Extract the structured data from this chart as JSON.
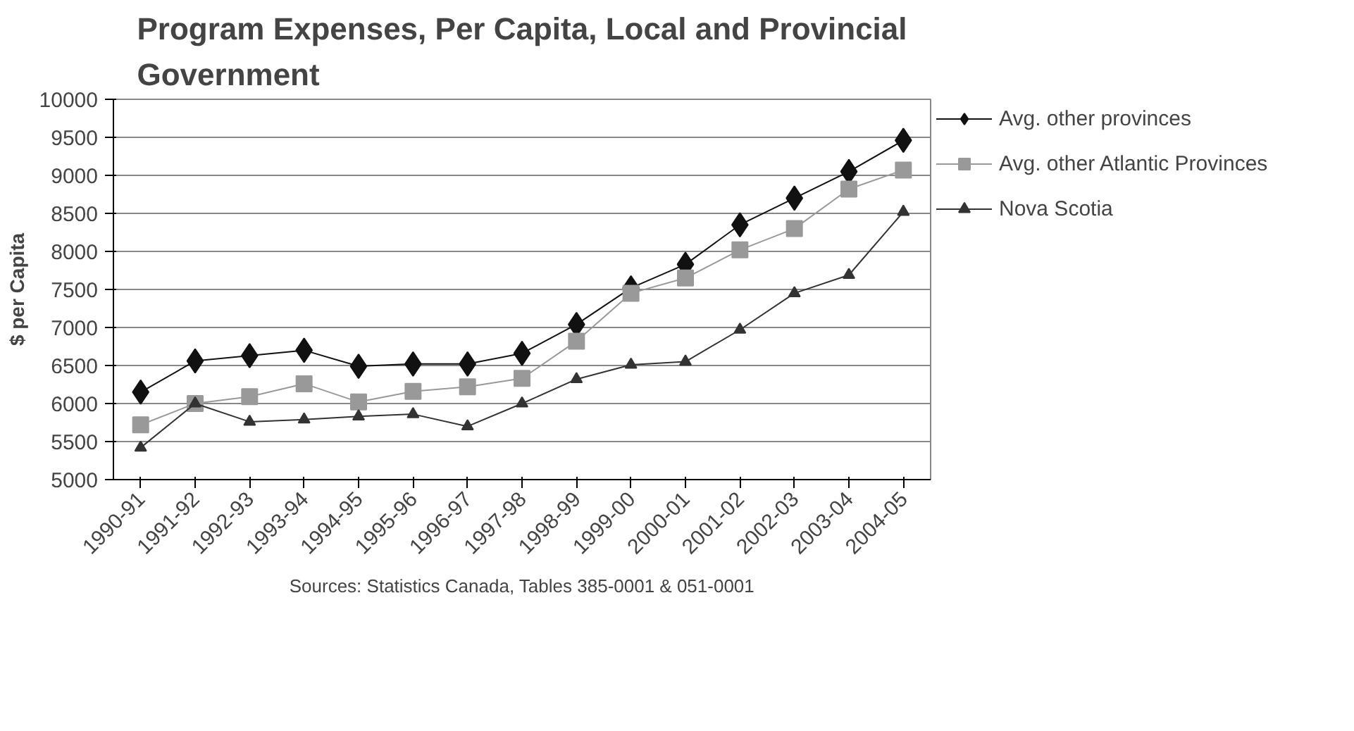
{
  "chart_data": {
    "type": "line",
    "title": "Program Expenses, Per Capita, Local and Provincial Government",
    "ylabel": "$ per Capita",
    "categories": [
      "1990-91",
      "1991-92",
      "1992-93",
      "1993-94",
      "1994-95",
      "1995-96",
      "1996-97",
      "1997-98",
      "1998-99",
      "1999-00",
      "2000-01",
      "2001-02",
      "2002-03",
      "2003-04",
      "2004-05"
    ],
    "series": [
      {
        "name": "Avg. other provinces",
        "color": "#111111",
        "marker": "diamond",
        "values": [
          6150,
          6560,
          6630,
          6700,
          6490,
          6520,
          6520,
          6660,
          7040,
          7520,
          7830,
          8350,
          8700,
          9050,
          9460
        ]
      },
      {
        "name": "Avg. other Atlantic Provinces",
        "color": "#999999",
        "marker": "square",
        "values": [
          5720,
          6000,
          6090,
          6260,
          6020,
          6160,
          6220,
          6330,
          6820,
          7450,
          7650,
          8020,
          8300,
          8820,
          9070
        ]
      },
      {
        "name": "Nova Scotia",
        "color": "#333333",
        "marker": "triangle",
        "values": [
          5420,
          6000,
          5760,
          5790,
          5830,
          5860,
          5700,
          6000,
          6320,
          6510,
          6550,
          6970,
          7450,
          7690,
          8520
        ]
      }
    ],
    "ylim": [
      5000,
      10000
    ],
    "yticks": [
      5000,
      5500,
      6000,
      6500,
      7000,
      7500,
      8000,
      8500,
      9000,
      9500,
      10000
    ],
    "grid": "y",
    "legend": "right",
    "line_style": "solid",
    "annotations": [
      "Sources: Statistics Canada, Tables 385-0001 & 051-0001"
    ]
  }
}
